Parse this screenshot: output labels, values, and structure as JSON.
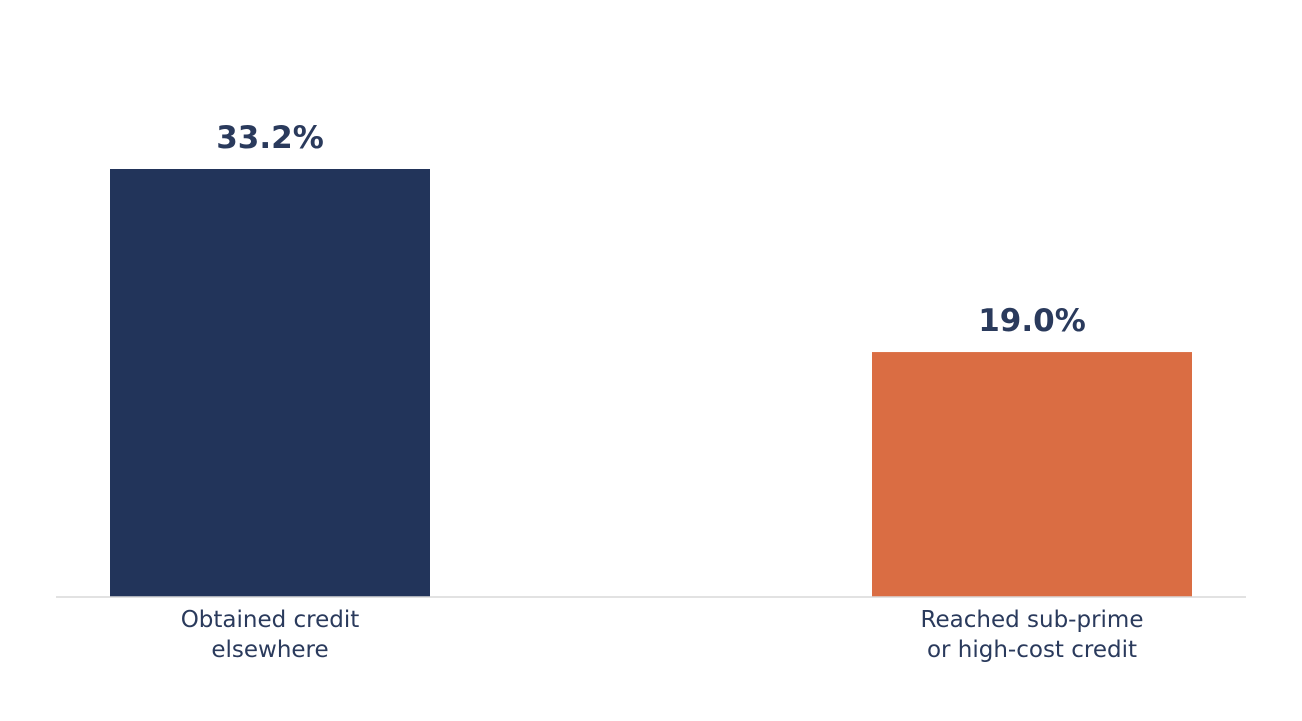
{
  "chart_data": {
    "type": "bar",
    "title": "",
    "xlabel": "",
    "ylabel": "",
    "categories": [
      "Obtained credit\nelsewhere",
      "Reached sub-prime\nor high-cost credit"
    ],
    "values": [
      33.2,
      19.0
    ],
    "value_labels": [
      "33.2%",
      "19.0%"
    ],
    "ylim": [
      0,
      40
    ],
    "grid": false,
    "legend": "none",
    "colors": {
      "bars": [
        "#22345a",
        "#da6d43"
      ],
      "value_label": "#2a3a5c",
      "category_label": "#2a3a5c",
      "baseline": "#d9d9d9"
    }
  }
}
